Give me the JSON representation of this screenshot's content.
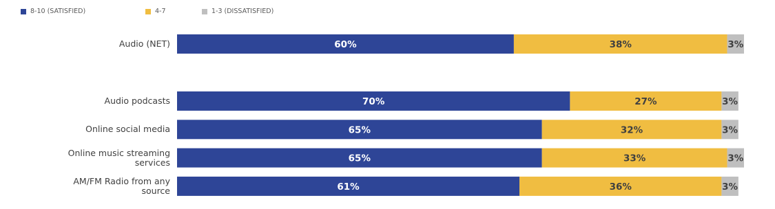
{
  "chart_data": {
    "type": "stacked-bar-horizontal",
    "categories": [
      "Audio (NET)",
      "Audio podcasts",
      "Online social media",
      "Online music streaming services",
      "AM/FM Radio from any source"
    ],
    "series": [
      {
        "name": "8-10 (SATISFIED)",
        "color": "#2e4597",
        "values": [
          60,
          70,
          65,
          65,
          61
        ],
        "value_labels": [
          "60%",
          "70%",
          "65%",
          "65%",
          "61%"
        ]
      },
      {
        "name": "4-7",
        "color": "#f0bd41",
        "values": [
          38,
          27,
          32,
          33,
          36
        ],
        "value_labels": [
          "38%",
          "27%",
          "32%",
          "33%",
          "36%"
        ]
      },
      {
        "name": "1-3 (DISSATISFIED)",
        "color": "#bfbfbf",
        "values": [
          3,
          3,
          3,
          3,
          3
        ],
        "value_labels": [
          "3%",
          "3%",
          "3%",
          "3%",
          "3%"
        ]
      }
    ]
  }
}
